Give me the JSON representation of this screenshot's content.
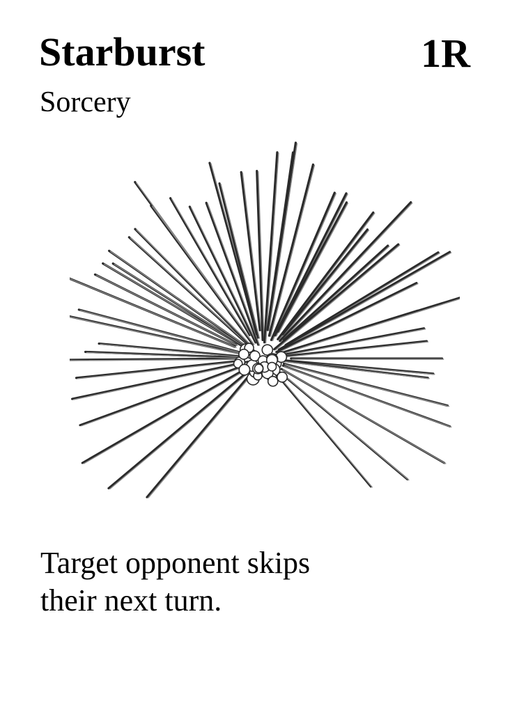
{
  "card": {
    "name": "Starburst",
    "cost": "1R",
    "type": "Sorcery",
    "rules_text": [
      "Target opponent skips",
      "their next turn."
    ],
    "art": {
      "icon": "starburst-illustration",
      "ink_color": "#2a2a2a",
      "shade_color": "#8a8a8a",
      "style": "black-and-white spiky urchin sketch"
    }
  }
}
